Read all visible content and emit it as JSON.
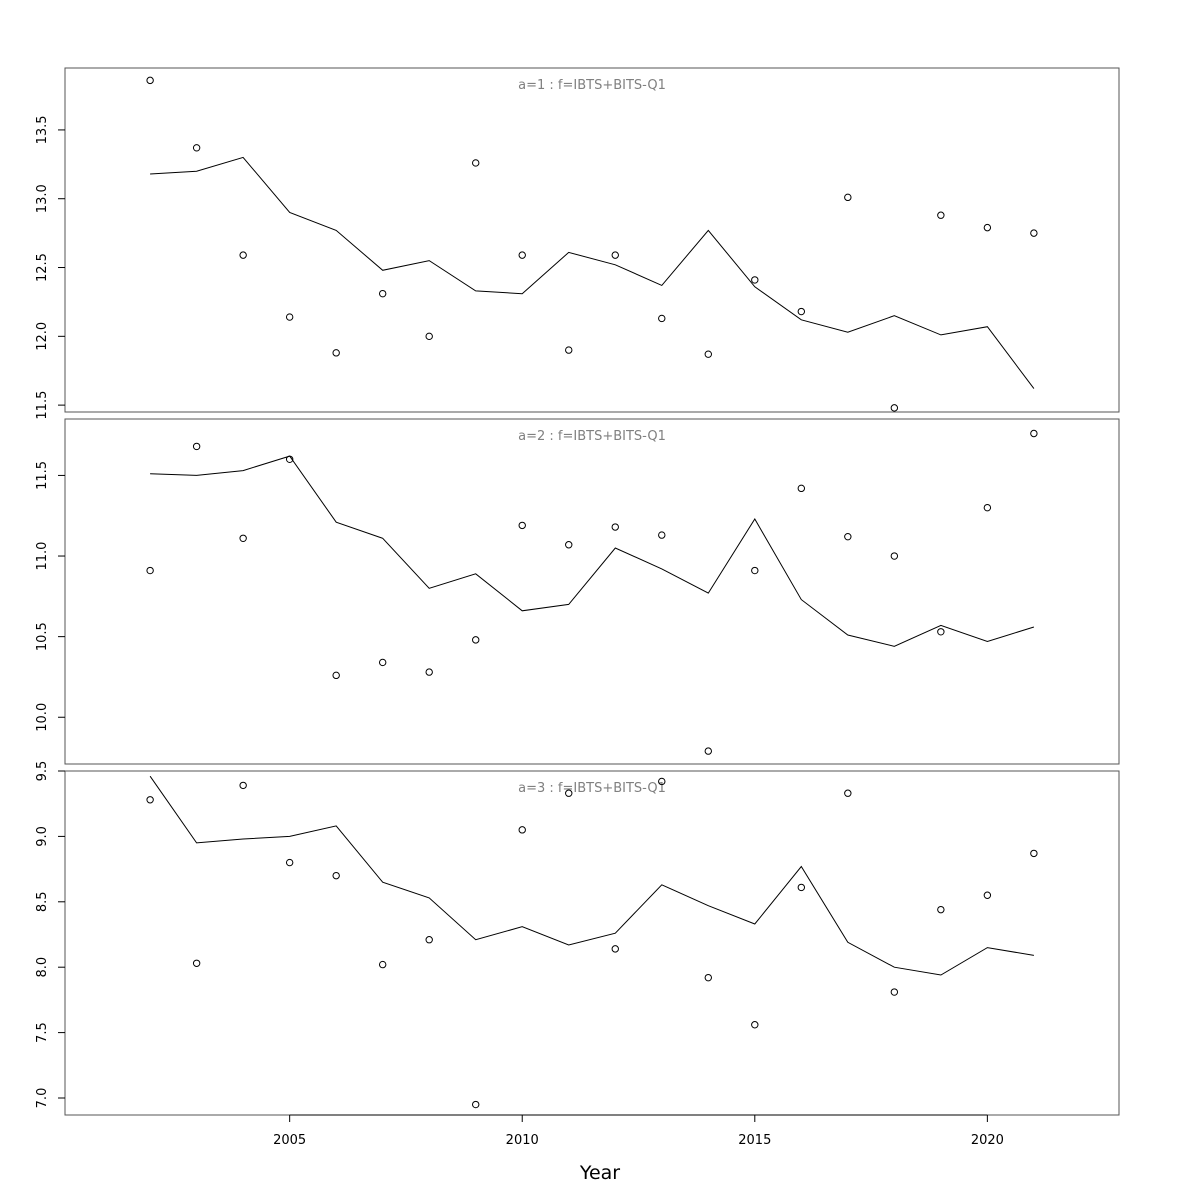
{
  "chart_data": [
    {
      "type": "line",
      "title": "a=1 : f=IBTS+BITS-Q1",
      "x": [
        2002,
        2003,
        2004,
        2005,
        2006,
        2007,
        2008,
        2009,
        2010,
        2011,
        2012,
        2013,
        2014,
        2015,
        2016,
        2017,
        2018,
        2019,
        2020,
        2021
      ],
      "ylim": [
        11.45,
        13.95
      ],
      "yticks": [
        "11.5",
        "12.0",
        "12.5",
        "13.0",
        "13.5"
      ],
      "series": [
        {
          "style": "line",
          "values": [
            13.18,
            13.2,
            13.3,
            12.9,
            12.77,
            12.48,
            12.55,
            12.33,
            12.31,
            12.61,
            12.52,
            12.37,
            12.77,
            12.36,
            12.12,
            12.03,
            12.15,
            12.01,
            12.07,
            11.62
          ]
        },
        {
          "style": "points",
          "values": [
            13.86,
            13.37,
            12.59,
            12.14,
            11.88,
            12.31,
            12.0,
            13.26,
            12.59,
            11.9,
            12.59,
            12.13,
            11.87,
            12.41,
            12.18,
            13.01,
            11.48,
            12.88,
            12.79,
            12.75
          ]
        }
      ]
    },
    {
      "type": "line",
      "title": "a=2 : f=IBTS+BITS-Q1",
      "x": [
        2002,
        2003,
        2004,
        2005,
        2006,
        2007,
        2008,
        2009,
        2010,
        2011,
        2012,
        2013,
        2014,
        2015,
        2016,
        2017,
        2018,
        2019,
        2020,
        2021
      ],
      "ylim": [
        9.71,
        11.85
      ],
      "yticks": [
        "10.0",
        "10.5",
        "11.0",
        "11.5"
      ],
      "series": [
        {
          "style": "line",
          "values": [
            11.51,
            11.5,
            11.53,
            11.62,
            11.21,
            11.11,
            10.8,
            10.89,
            10.66,
            10.7,
            11.05,
            10.92,
            10.77,
            11.23,
            10.73,
            10.51,
            10.44,
            10.57,
            10.47,
            10.56
          ]
        },
        {
          "style": "points",
          "values": [
            10.91,
            11.68,
            11.11,
            11.6,
            10.26,
            10.34,
            10.28,
            10.48,
            11.19,
            11.07,
            11.18,
            11.13,
            9.79,
            10.91,
            11.42,
            11.12,
            11.0,
            10.53,
            11.3,
            11.76
          ]
        }
      ]
    },
    {
      "type": "line",
      "title": "a=3 : f=IBTS+BITS-Q1",
      "x": [
        2002,
        2003,
        2004,
        2005,
        2006,
        2007,
        2008,
        2009,
        2010,
        2011,
        2012,
        2013,
        2014,
        2015,
        2016,
        2017,
        2018,
        2019,
        2020,
        2021
      ],
      "ylim": [
        6.87,
        9.5
      ],
      "yticks": [
        "7.0",
        "7.5",
        "8.0",
        "8.5",
        "9.0",
        "9.5"
      ],
      "xlim": [
        2000.17,
        2022.83
      ],
      "xticks": [
        "2005",
        "2010",
        "2015",
        "2020"
      ],
      "xlabel": "Year",
      "series": [
        {
          "style": "line",
          "values": [
            9.46,
            8.95,
            8.98,
            9.0,
            9.08,
            8.65,
            8.53,
            8.21,
            8.31,
            8.17,
            8.26,
            8.63,
            8.47,
            8.33,
            8.77,
            8.19,
            8.0,
            7.94,
            8.15,
            8.09
          ]
        },
        {
          "style": "points",
          "values": [
            9.28,
            8.03,
            9.39,
            8.8,
            8.7,
            8.02,
            8.21,
            6.95,
            9.05,
            9.33,
            8.14,
            9.42,
            7.92,
            7.56,
            8.61,
            9.33,
            7.81,
            8.44,
            8.55,
            8.87
          ]
        }
      ]
    }
  ]
}
